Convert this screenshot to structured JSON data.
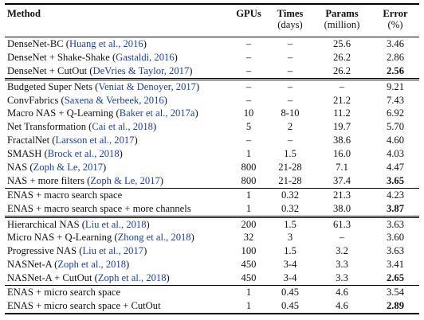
{
  "header": {
    "method": "Method",
    "gpus": "GPUs",
    "times": "Times",
    "times_unit": "(days)",
    "params": "Params",
    "params_unit": "(million)",
    "error": "Error",
    "error_unit": "(%)"
  },
  "groups": [
    {
      "border": "single",
      "rows": [
        {
          "name": "DenseNet-BC",
          "cite": "Huang et al., 2016",
          "gpus": "–",
          "times": "–",
          "params": "25.6",
          "error": "3.46",
          "best": false
        },
        {
          "name": "DenseNet + Shake-Shake",
          "cite": "Gastaldi, 2016",
          "gpus": "–",
          "times": "–",
          "params": "26.2",
          "error": "2.86",
          "best": false
        },
        {
          "name": "DenseNet + CutOut",
          "cite": "DeVries & Taylor, 2017",
          "gpus": "–",
          "times": "–",
          "params": "26.2",
          "error": "2.56",
          "best": true
        }
      ]
    },
    {
      "border": "double",
      "rows": [
        {
          "name": "Budgeted Super Nets",
          "cite": "Veniat & Denoyer, 2017",
          "gpus": "–",
          "times": "–",
          "params": "–",
          "error": "9.21",
          "best": false
        },
        {
          "name": "ConvFabrics",
          "cite": "Saxena & Verbeek, 2016",
          "gpus": "–",
          "times": "–",
          "params": "21.2",
          "error": "7.43",
          "best": false
        },
        {
          "name": "Macro NAS + Q-Learning",
          "cite": "Baker et al., 2017a",
          "gpus": "10",
          "times": "8-10",
          "params": "11.2",
          "error": "6.92",
          "best": false
        },
        {
          "name": "Net Transformation",
          "cite": "Cai et al., 2018",
          "gpus": "5",
          "times": "2",
          "params": "19.7",
          "error": "5.70",
          "best": false
        },
        {
          "name": "FractalNet",
          "cite": "Larsson et al., 2017",
          "gpus": "–",
          "times": "–",
          "params": "38.6",
          "error": "4.60",
          "best": false
        },
        {
          "name": "SMASH",
          "cite": "Brock et al., 2018",
          "gpus": "1",
          "times": "1.5",
          "params": "16.0",
          "error": "4.03",
          "best": false
        },
        {
          "name": "NAS",
          "cite": "Zoph & Le, 2017",
          "gpus": "800",
          "times": "21-28",
          "params": "7.1",
          "error": "4.47",
          "best": false
        },
        {
          "name": "NAS + more filters",
          "cite": "Zoph & Le, 2017",
          "gpus": "800",
          "times": "21-28",
          "params": "37.4",
          "error": "3.65",
          "best": true
        }
      ]
    },
    {
      "border": "single",
      "rows": [
        {
          "name": "ENAS + macro search space",
          "cite": "",
          "gpus": "1",
          "times": "0.32",
          "params": "21.3",
          "error": "4.23",
          "best": false
        },
        {
          "name": "ENAS + macro search space + more channels",
          "cite": "",
          "gpus": "1",
          "times": "0.32",
          "params": "38.0",
          "error": "3.87",
          "best": true
        }
      ]
    },
    {
      "border": "double",
      "rows": [
        {
          "name": "Hierarchical NAS",
          "cite": "Liu et al., 2018",
          "gpus": "200",
          "times": "1.5",
          "params": "61.3",
          "error": "3.63",
          "best": false
        },
        {
          "name": "Micro NAS + Q-Learning",
          "cite": "Zhong et al., 2018",
          "gpus": "32",
          "times": "3",
          "params": "–",
          "error": "3.60",
          "best": false
        },
        {
          "name": "Progressive NAS",
          "cite": "Liu et al., 2017",
          "gpus": "100",
          "times": "1.5",
          "params": "3.2",
          "error": "3.63",
          "best": false
        },
        {
          "name": "NASNet-A",
          "cite": "Zoph et al., 2018",
          "gpus": "450",
          "times": "3-4",
          "params": "3.3",
          "error": "3.41",
          "best": false
        },
        {
          "name": "NASNet-A + CutOut",
          "cite": "Zoph et al., 2018",
          "gpus": "450",
          "times": "3-4",
          "params": "3.3",
          "error": "2.65",
          "best": true
        }
      ]
    },
    {
      "border": "single",
      "rows": [
        {
          "name": "ENAS + micro search space",
          "cite": "",
          "gpus": "1",
          "times": "0.45",
          "params": "4.6",
          "error": "3.54",
          "best": false
        },
        {
          "name": "ENAS + micro search space + CutOut",
          "cite": "",
          "gpus": "1",
          "times": "0.45",
          "params": "4.6",
          "error": "2.89",
          "best": true
        }
      ]
    }
  ]
}
